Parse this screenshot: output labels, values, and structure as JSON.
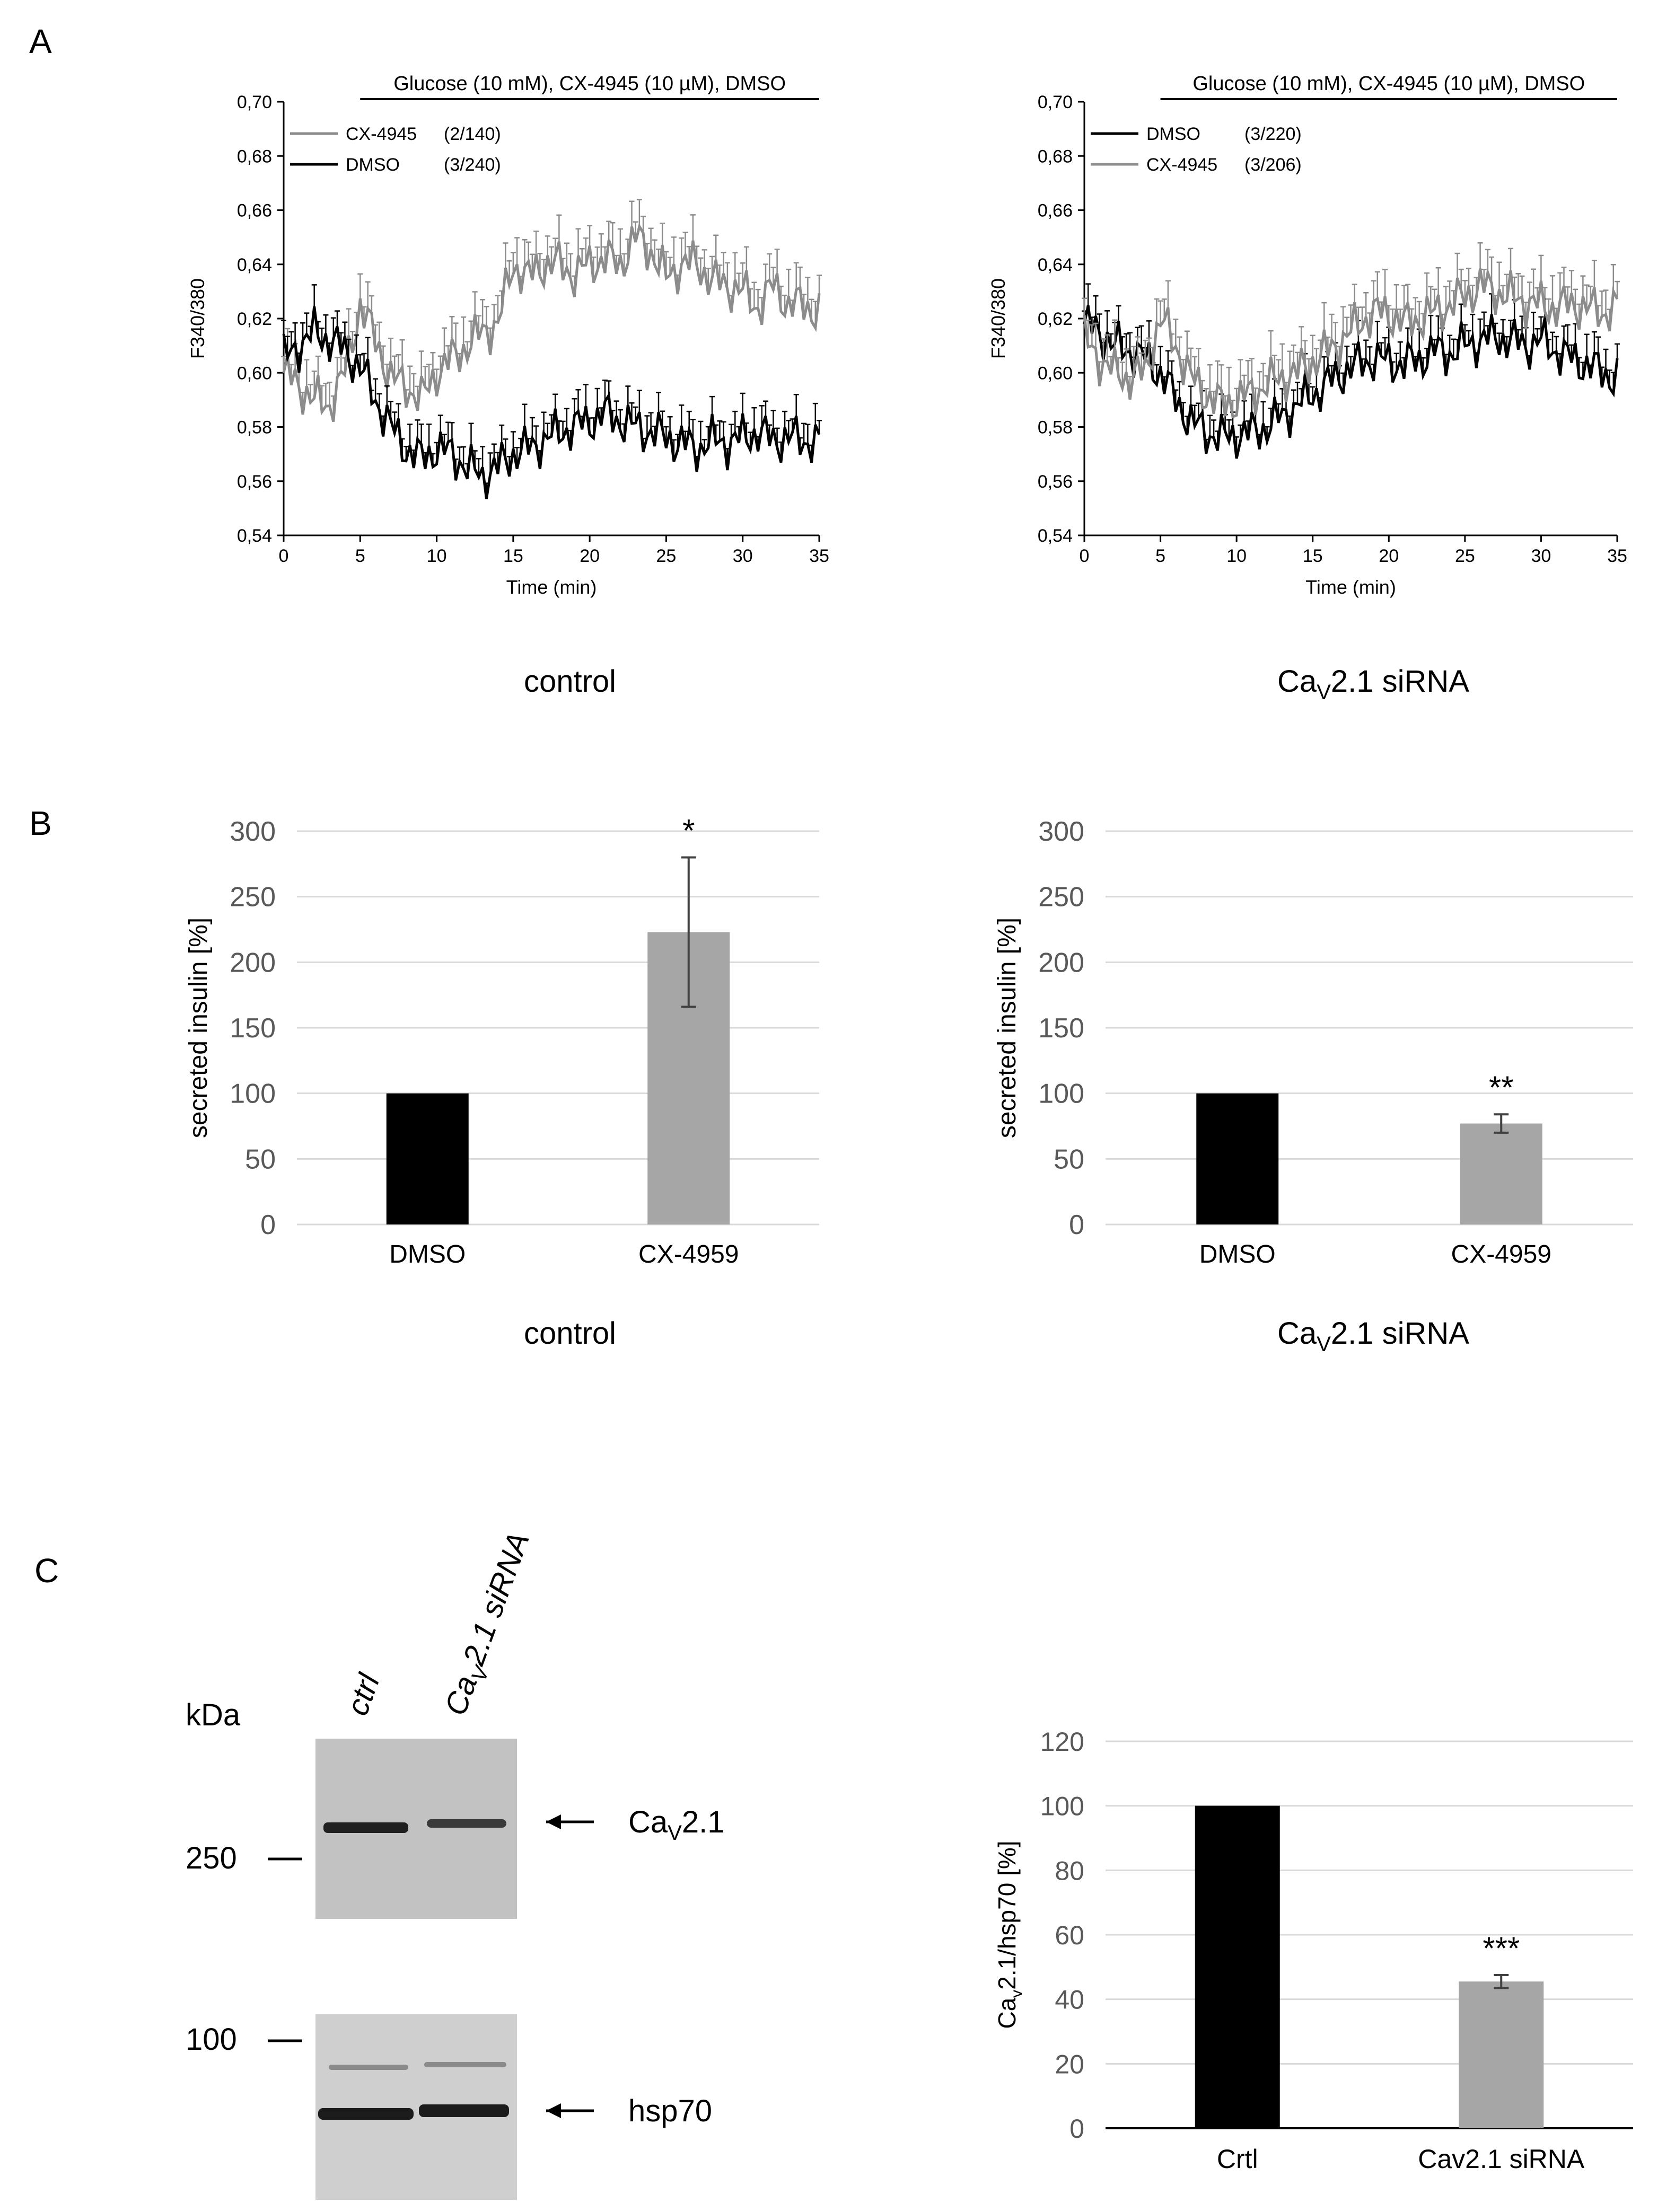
{
  "figure": {
    "panel_letters": [
      "A",
      "B",
      "C"
    ],
    "colors": {
      "black_series": "#000000",
      "gray_series": "#8c8c8c",
      "gray_bar": "#a6a6a6",
      "grid": "#d9d9d9",
      "axis_text": "#595959"
    },
    "panelA": {
      "left": {
        "caption": "control"
      },
      "right": {
        "caption_main": "Ca",
        "caption_sub": "V",
        "caption_tail": "2.1 siRNA"
      }
    },
    "panelB": {
      "left": {
        "caption": "control"
      },
      "right": {
        "caption_main": "Ca",
        "caption_sub": "V",
        "caption_tail": "2.1 siRNA"
      }
    },
    "panelC": {
      "blot": {
        "lane_labels": [
          "ctrl",
          "Ca",
          "V",
          "2.1 siRNA"
        ],
        "kda_label": "kDa",
        "markers": [
          "250",
          "100"
        ],
        "band_labels": {
          "top_main": "Ca",
          "top_sub": "V",
          "top_tail": "2.1",
          "bottom": "hsp70"
        }
      }
    }
  },
  "chart_data": [
    {
      "id": "A-left",
      "type": "line",
      "title": "Glucose (10 mM), CX-4945 (10 µM), DMSO",
      "xlabel": "Time (min)",
      "ylabel": "F340/380",
      "xlim": [
        0,
        35
      ],
      "ylim": [
        0.54,
        0.7
      ],
      "xticks": [
        "0",
        "5",
        "10",
        "15",
        "20",
        "25",
        "30",
        "35"
      ],
      "yticks": [
        "0,54",
        "0,56",
        "0,58",
        "0,60",
        "0,62",
        "0,64",
        "0,66",
        "0,68",
        "0,70"
      ],
      "legend_position": "top-left",
      "series": [
        {
          "name": "CX-4945",
          "n": "(2/140)",
          "color": "#8c8c8c",
          "keypoints": [
            [
              0,
              0.6
            ],
            [
              1,
              0.595
            ],
            [
              2,
              0.59
            ],
            [
              3,
              0.588
            ],
            [
              4,
              0.6
            ],
            [
              5,
              0.625
            ],
            [
              6,
              0.612
            ],
            [
              7,
              0.598
            ],
            [
              8,
              0.595
            ],
            [
              9,
              0.59
            ],
            [
              10,
              0.6
            ],
            [
              11,
              0.605
            ],
            [
              12,
              0.61
            ],
            [
              13,
              0.615
            ],
            [
              14,
              0.618
            ],
            [
              15,
              0.64
            ],
            [
              16,
              0.635
            ],
            [
              17,
              0.64
            ],
            [
              18,
              0.64
            ],
            [
              19,
              0.636
            ],
            [
              20,
              0.64
            ],
            [
              21,
              0.642
            ],
            [
              22,
              0.64
            ],
            [
              23,
              0.65
            ],
            [
              24,
              0.645
            ],
            [
              25,
              0.635
            ],
            [
              26,
              0.64
            ],
            [
              27,
              0.64
            ],
            [
              28,
              0.634
            ],
            [
              29,
              0.632
            ],
            [
              30,
              0.63
            ],
            [
              31,
              0.624
            ],
            [
              32,
              0.632
            ],
            [
              33,
              0.625
            ],
            [
              34,
              0.625
            ],
            [
              35,
              0.622
            ]
          ],
          "error": 0.01
        },
        {
          "name": "DMSO",
          "n": "(3/240)",
          "color": "#000000",
          "keypoints": [
            [
              0,
              0.605
            ],
            [
              1,
              0.61
            ],
            [
              2,
              0.615
            ],
            [
              3,
              0.612
            ],
            [
              4,
              0.608
            ],
            [
              5,
              0.602
            ],
            [
              6,
              0.59
            ],
            [
              7,
              0.58
            ],
            [
              8,
              0.572
            ],
            [
              9,
              0.568
            ],
            [
              10,
              0.572
            ],
            [
              11,
              0.57
            ],
            [
              12,
              0.565
            ],
            [
              13,
              0.562
            ],
            [
              14,
              0.565
            ],
            [
              15,
              0.57
            ],
            [
              16,
              0.572
            ],
            [
              17,
              0.575
            ],
            [
              18,
              0.578
            ],
            [
              19,
              0.58
            ],
            [
              20,
              0.582
            ],
            [
              21,
              0.585
            ],
            [
              22,
              0.582
            ],
            [
              23,
              0.58
            ],
            [
              24,
              0.578
            ],
            [
              25,
              0.576
            ],
            [
              26,
              0.574
            ],
            [
              27,
              0.572
            ],
            [
              28,
              0.575
            ],
            [
              29,
              0.574
            ],
            [
              30,
              0.576
            ],
            [
              31,
              0.578
            ],
            [
              32,
              0.575
            ],
            [
              33,
              0.576
            ],
            [
              34,
              0.575
            ],
            [
              35,
              0.574
            ]
          ],
          "error": 0.008
        }
      ]
    },
    {
      "id": "A-right",
      "type": "line",
      "title": "Glucose (10 mM), CX-4945 (10 µM), DMSO",
      "xlabel": "Time (min)",
      "ylabel": "F340/380",
      "xlim": [
        0,
        35
      ],
      "ylim": [
        0.54,
        0.7
      ],
      "xticks": [
        "0",
        "5",
        "10",
        "15",
        "20",
        "25",
        "30",
        "35"
      ],
      "yticks": [
        "0,54",
        "0,56",
        "0,58",
        "0,60",
        "0,62",
        "0,64",
        "0,66",
        "0,68",
        "0,70"
      ],
      "legend_position": "top-left",
      "series": [
        {
          "name": "DMSO",
          "n": "(3/220)",
          "color": "#000000",
          "keypoints": [
            [
              0,
              0.618
            ],
            [
              1,
              0.615
            ],
            [
              2,
              0.61
            ],
            [
              3,
              0.608
            ],
            [
              4,
              0.605
            ],
            [
              5,
              0.6
            ],
            [
              6,
              0.59
            ],
            [
              7,
              0.582
            ],
            [
              8,
              0.578
            ],
            [
              9,
              0.576
            ],
            [
              10,
              0.577
            ],
            [
              11,
              0.578
            ],
            [
              12,
              0.58
            ],
            [
              13,
              0.584
            ],
            [
              14,
              0.588
            ],
            [
              15,
              0.592
            ],
            [
              16,
              0.596
            ],
            [
              17,
              0.6
            ],
            [
              18,
              0.603
            ],
            [
              19,
              0.605
            ],
            [
              20,
              0.604
            ],
            [
              21,
              0.603
            ],
            [
              22,
              0.605
            ],
            [
              23,
              0.608
            ],
            [
              24,
              0.607
            ],
            [
              25,
              0.61
            ],
            [
              26,
              0.612
            ],
            [
              27,
              0.613
            ],
            [
              28,
              0.612
            ],
            [
              29,
              0.61
            ],
            [
              30,
              0.612
            ],
            [
              31,
              0.608
            ],
            [
              32,
              0.605
            ],
            [
              33,
              0.603
            ],
            [
              34,
              0.6
            ],
            [
              35,
              0.598
            ]
          ],
          "error": 0.008
        },
        {
          "name": "CX-4945",
          "n": "(3/206)",
          "color": "#8c8c8c",
          "keypoints": [
            [
              0,
              0.612
            ],
            [
              1,
              0.605
            ],
            [
              2,
              0.6
            ],
            [
              3,
              0.598
            ],
            [
              4,
              0.6
            ],
            [
              5,
              0.62
            ],
            [
              6,
              0.61
            ],
            [
              7,
              0.598
            ],
            [
              8,
              0.592
            ],
            [
              9,
              0.588
            ],
            [
              10,
              0.59
            ],
            [
              11,
              0.592
            ],
            [
              12,
              0.596
            ],
            [
              13,
              0.598
            ],
            [
              14,
              0.6
            ],
            [
              15,
              0.604
            ],
            [
              16,
              0.608
            ],
            [
              17,
              0.612
            ],
            [
              18,
              0.618
            ],
            [
              19,
              0.622
            ],
            [
              20,
              0.622
            ],
            [
              21,
              0.618
            ],
            [
              22,
              0.62
            ],
            [
              23,
              0.622
            ],
            [
              24,
              0.625
            ],
            [
              25,
              0.628
            ],
            [
              26,
              0.632
            ],
            [
              27,
              0.63
            ],
            [
              28,
              0.628
            ],
            [
              29,
              0.626
            ],
            [
              30,
              0.625
            ],
            [
              31,
              0.624
            ],
            [
              32,
              0.625
            ],
            [
              33,
              0.624
            ],
            [
              34,
              0.622
            ],
            [
              35,
              0.624
            ]
          ],
          "error": 0.01
        }
      ]
    },
    {
      "id": "B-left",
      "type": "bar",
      "ylabel": "secreted insulin [%]",
      "categories": [
        "DMSO",
        "CX-4959"
      ],
      "values": [
        100,
        223
      ],
      "errors": [
        0,
        57
      ],
      "colors": [
        "#000000",
        "#a6a6a6"
      ],
      "significance": [
        "",
        "*"
      ],
      "ylim": [
        0,
        300
      ],
      "yticks": [
        "0",
        "50",
        "100",
        "150",
        "200",
        "250",
        "300"
      ],
      "grid": true
    },
    {
      "id": "B-right",
      "type": "bar",
      "ylabel": "secreted insulin [%]",
      "categories": [
        "DMSO",
        "CX-4959"
      ],
      "values": [
        100,
        77
      ],
      "errors": [
        0,
        7
      ],
      "colors": [
        "#000000",
        "#a6a6a6"
      ],
      "significance": [
        "",
        "**"
      ],
      "ylim": [
        0,
        300
      ],
      "yticks": [
        "0",
        "50",
        "100",
        "150",
        "200",
        "250",
        "300"
      ],
      "grid": true
    },
    {
      "id": "C-right",
      "type": "bar",
      "ylabel_main": "Ca",
      "ylabel_sub": "v",
      "ylabel_tail": "2.1/hsp70  [%]",
      "categories": [
        "Crtl",
        "Cav2.1 siRNA"
      ],
      "values": [
        100,
        45.5
      ],
      "errors": [
        0,
        2
      ],
      "colors": [
        "#000000",
        "#a6a6a6"
      ],
      "significance": [
        "",
        "***"
      ],
      "ylim": [
        0,
        120
      ],
      "yticks": [
        "0",
        "20",
        "40",
        "60",
        "80",
        "100",
        "120"
      ],
      "grid": true
    }
  ]
}
